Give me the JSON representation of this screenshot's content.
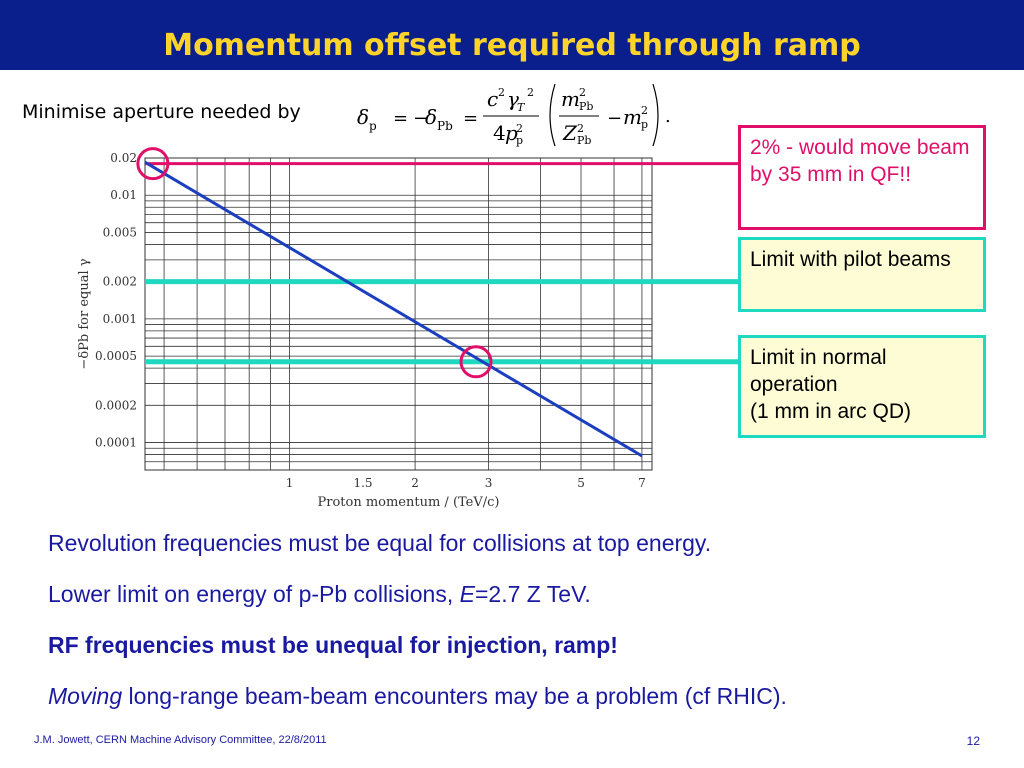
{
  "slide": {
    "title": "Momentum offset required through ramp",
    "lead": "Minimise aperture needed by",
    "footer": "J.M. Jowett, CERN Machine Advisory Committee, 22/8/2011",
    "page_number": "12",
    "header_color": "#0b1f8c",
    "title_color": "#ffd42a"
  },
  "callouts": [
    {
      "text": "2% - would move beam by 35 mm in QF!!",
      "color": "#e0106a"
    },
    {
      "text": "Limit with pilot beams",
      "color": "#1fd8c0"
    },
    {
      "lines": [
        "Limit in normal operation",
        "(1 mm in arc QD)"
      ],
      "color": "#1fd8c0"
    }
  ],
  "bullets": [
    {
      "text": "Revolution frequencies must be equal for collisions at top energy."
    },
    {
      "text_before": "Lower limit on energy of p-Pb collisions, ",
      "italic": "E",
      "text_after": "=2.7 Z TeV."
    },
    {
      "text": "RF frequencies must be unequal for injection, ramp!"
    },
    {
      "italic": "Moving",
      "text_after": " long-range beam-beam encounters may be a problem (cf RHIC)."
    }
  ],
  "chart_data": {
    "type": "line",
    "xlabel": "Proton momentum / (TeV/c)",
    "ylabel": "−δPb for equal γ",
    "x_scale": "log",
    "y_scale": "log",
    "xlim": [
      0.45,
      7.4
    ],
    "ylim": [
      6e-05,
      0.02
    ],
    "x_ticks": [
      1,
      1.5,
      2,
      3,
      5,
      7
    ],
    "x_tick_labels": [
      "1",
      "1.5",
      "2",
      "3",
      "5",
      "7"
    ],
    "y_ticks": [
      0.02,
      0.01,
      0.005,
      0.002,
      0.001,
      0.0005,
      0.0002,
      0.0001
    ],
    "y_tick_labels": [
      "0.02",
      "0.01",
      "0.005",
      "0.002",
      "0.001",
      "0.0005",
      "0.0002",
      "0.0001"
    ],
    "grid": true,
    "series": [
      {
        "x": [
          0.45,
          7.0
        ],
        "y": [
          0.0185,
          7.8e-05
        ],
        "color": "#1b3fbf"
      }
    ],
    "horizontal_lines": [
      {
        "y": 0.018,
        "color": "#e0106a"
      },
      {
        "y": 0.002,
        "color": "#1fd8c0"
      },
      {
        "y": 0.00045,
        "color": "#1fd8c0"
      }
    ],
    "highlight_circles": [
      {
        "x": 0.47,
        "y": 0.018,
        "color": "#e0106a"
      },
      {
        "x": 2.8,
        "y": 0.00045,
        "color": "#e0106a"
      }
    ]
  }
}
